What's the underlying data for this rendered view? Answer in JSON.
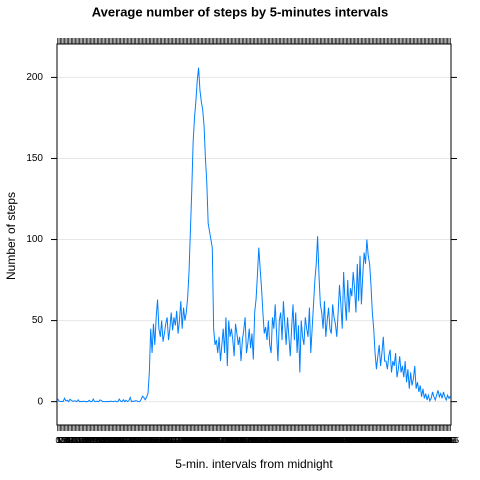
{
  "chart_data": {
    "type": "line",
    "title": "Average number of steps by 5-minutes intervals",
    "x_label": "5-min. intervals from midnight",
    "y_label": "Number of steps",
    "color": "#0080ff",
    "grid": true,
    "ylim": [
      -14.4,
      220.6
    ],
    "yticks": [
      0,
      50,
      100,
      150,
      200
    ],
    "categories": [
      "0",
      "5",
      "10",
      "15",
      "20",
      "25",
      "30",
      "35",
      "40",
      "45",
      "50",
      "55",
      "100",
      "105",
      "110",
      "115",
      "120",
      "125",
      "130",
      "135",
      "140",
      "145",
      "150",
      "155",
      "200",
      "205",
      "210",
      "215",
      "220",
      "225",
      "230",
      "235",
      "240",
      "245",
      "250",
      "255",
      "300",
      "305",
      "310",
      "315",
      "320",
      "325",
      "330",
      "335",
      "340",
      "345",
      "350",
      "355",
      "400",
      "405",
      "410",
      "415",
      "420",
      "425",
      "430",
      "435",
      "440",
      "445",
      "450",
      "455",
      "500",
      "505",
      "510",
      "515",
      "520",
      "525",
      "530",
      "535",
      "540",
      "545",
      "550",
      "555",
      "600",
      "605",
      "610",
      "615",
      "620",
      "625",
      "630",
      "635",
      "640",
      "645",
      "650",
      "655",
      "700",
      "705",
      "710",
      "715",
      "720",
      "725",
      "730",
      "735",
      "740",
      "745",
      "750",
      "755",
      "800",
      "805",
      "810",
      "815",
      "820",
      "825",
      "830",
      "835",
      "840",
      "845",
      "850",
      "855",
      "900",
      "905",
      "910",
      "915",
      "920",
      "925",
      "930",
      "935",
      "940",
      "945",
      "950",
      "955",
      "1000",
      "1005",
      "1010",
      "1015",
      "1020",
      "1025",
      "1030",
      "1035",
      "1040",
      "1045",
      "1050",
      "1055",
      "1100",
      "1105",
      "1110",
      "1115",
      "1120",
      "1125",
      "1130",
      "1135",
      "1140",
      "1145",
      "1150",
      "1155",
      "1200",
      "1205",
      "1210",
      "1215",
      "1220",
      "1225",
      "1230",
      "1235",
      "1240",
      "1245",
      "1250",
      "1255",
      "1300",
      "1305",
      "1310",
      "1315",
      "1320",
      "1325",
      "1330",
      "1335",
      "1340",
      "1345",
      "1350",
      "1355",
      "1400",
      "1405",
      "1410",
      "1415",
      "1420",
      "1425",
      "1430",
      "1435",
      "1440",
      "1445",
      "1450",
      "1455",
      "1500",
      "1505",
      "1510",
      "1515",
      "1520",
      "1525",
      "1530",
      "1535",
      "1540",
      "1545",
      "1550",
      "1555",
      "1600",
      "1605",
      "1610",
      "1615",
      "1620",
      "1625",
      "1630",
      "1635",
      "1640",
      "1645",
      "1650",
      "1655",
      "1700",
      "1705",
      "1710",
      "1715",
      "1720",
      "1725",
      "1730",
      "1735",
      "1740",
      "1745",
      "1750",
      "1755",
      "1800",
      "1805",
      "1810",
      "1815",
      "1820",
      "1825",
      "1830",
      "1835",
      "1840",
      "1845",
      "1850",
      "1855",
      "1900",
      "1905",
      "1910",
      "1915",
      "1920",
      "1925",
      "1930",
      "1935",
      "1940",
      "1945",
      "1950",
      "1955",
      "2000",
      "2005",
      "2010",
      "2015",
      "2020",
      "2025",
      "2030",
      "2035",
      "2040",
      "2045",
      "2050",
      "2055",
      "2100",
      "2105",
      "2110",
      "2115",
      "2120",
      "2125",
      "2130",
      "2135",
      "2140",
      "2145",
      "2150",
      "2155",
      "2200",
      "2205",
      "2210",
      "2215",
      "2220",
      "2225",
      "2230",
      "2235",
      "2240",
      "2245",
      "2250",
      "2255",
      "2300",
      "2305",
      "2310",
      "2315",
      "2320",
      "2325",
      "2330",
      "2335",
      "2340",
      "2345",
      "2350",
      "2355"
    ],
    "values": [
      1.7,
      0.3,
      0.1,
      0.2,
      0.1,
      2.1,
      0.5,
      0.9,
      0,
      1.5,
      0.8,
      0.2,
      0.4,
      0.5,
      0,
      1.1,
      0,
      0.2,
      0,
      0.3,
      0,
      0.1,
      0,
      0.8,
      0,
      0,
      1.6,
      0,
      0.1,
      0.3,
      0,
      1.1,
      0.6,
      0,
      0,
      0,
      0,
      0.2,
      0,
      0.3,
      0,
      0.1,
      0.4,
      0,
      0,
      1.6,
      0.3,
      0,
      1.2,
      0,
      0.9,
      0,
      0.5,
      2.6,
      0,
      0.3,
      0.2,
      0.6,
      0.4,
      0,
      0.1,
      1.3,
      3.4,
      2.5,
      1.2,
      2.8,
      5,
      18,
      45,
      30,
      48,
      35,
      52,
      63,
      45,
      40,
      50,
      37,
      42,
      48,
      52,
      38,
      45,
      55,
      44,
      52,
      47,
      56,
      42,
      50,
      62,
      45,
      58,
      50,
      55,
      64,
      80,
      105,
      130,
      160,
      175,
      185,
      198,
      206,
      192,
      185,
      180,
      170,
      150,
      135,
      110,
      105,
      100,
      95,
      45,
      35,
      38,
      30,
      40,
      25,
      35,
      45,
      30,
      52,
      22,
      50,
      40,
      45,
      38,
      28,
      48,
      42,
      35,
      40,
      25,
      38,
      44,
      52,
      30,
      36,
      45,
      33,
      42,
      26,
      55,
      63,
      78,
      95,
      82,
      70,
      55,
      42,
      46,
      38,
      50,
      35,
      30,
      52,
      45,
      60,
      42,
      25,
      50,
      55,
      38,
      62,
      48,
      35,
      52,
      40,
      28,
      45,
      60,
      38,
      55,
      30,
      47,
      18,
      50,
      40,
      35,
      52,
      45,
      40,
      58,
      30,
      45,
      60,
      75,
      85,
      102,
      78,
      60,
      55,
      45,
      62,
      40,
      50,
      58,
      45,
      42,
      60,
      52,
      48,
      40,
      55,
      72,
      60,
      45,
      80,
      62,
      50,
      75,
      55,
      70,
      65,
      80,
      70,
      55,
      85,
      62,
      90,
      60,
      78,
      92,
      85,
      100,
      90,
      85,
      72,
      55,
      45,
      30,
      20,
      28,
      35,
      22,
      30,
      40,
      25,
      25,
      20,
      28,
      32,
      18,
      25,
      22,
      30,
      15,
      20,
      28,
      18,
      22,
      15,
      25,
      12,
      20,
      8,
      18,
      10,
      14,
      22,
      8,
      12,
      6,
      10,
      3,
      8,
      2,
      5,
      1,
      4,
      0.5,
      2,
      6,
      3,
      1,
      4,
      7,
      3,
      5,
      2,
      6,
      3,
      1,
      4,
      2,
      3.3
    ]
  }
}
